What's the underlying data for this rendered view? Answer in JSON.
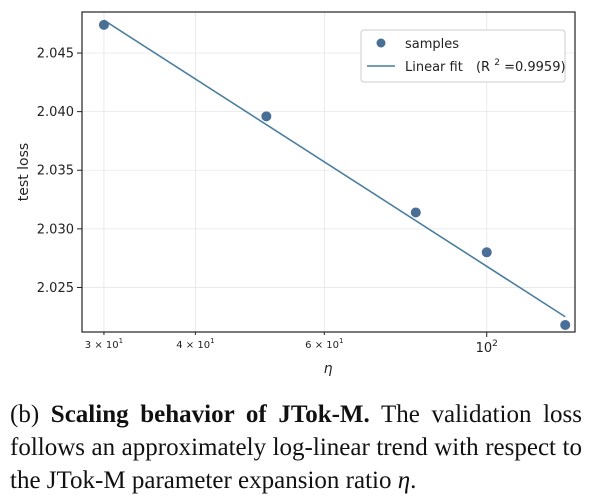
{
  "chart_data": {
    "type": "scatter",
    "xlabel": "η",
    "ylabel": "test loss",
    "xscale": "log",
    "xlim": [
      28,
      132
    ],
    "ylim": [
      2.0212,
      2.0485
    ],
    "x_ticks_minor": [
      {
        "value": 30,
        "base": "3 × 10",
        "exp": "1"
      },
      {
        "value": 40,
        "base": "4 × 10",
        "exp": "1"
      },
      {
        "value": 60,
        "base": "6 × 10",
        "exp": "1"
      }
    ],
    "x_ticks_major": [
      {
        "value": 100,
        "base": "10",
        "exp": "2"
      }
    ],
    "y_ticks": [
      {
        "value": 2.025,
        "label": "2.025"
      },
      {
        "value": 2.03,
        "label": "2.030"
      },
      {
        "value": 2.035,
        "label": "2.035"
      },
      {
        "value": 2.04,
        "label": "2.040"
      },
      {
        "value": 2.045,
        "label": "2.045"
      }
    ],
    "grid": true,
    "legend_position": "top-right",
    "series": [
      {
        "name": "samples",
        "kind": "scatter",
        "color": "#4a6f96",
        "points": [
          {
            "x": 30,
            "y": 2.0474
          },
          {
            "x": 50,
            "y": 2.0396
          },
          {
            "x": 80,
            "y": 2.0314
          },
          {
            "x": 100,
            "y": 2.028
          },
          {
            "x": 128,
            "y": 2.0218
          }
        ]
      },
      {
        "name": "Linear fit",
        "legend_suffix_prefix": "(R",
        "legend_suffix_sup": "2",
        "legend_suffix_rest": "=0.9959)",
        "kind": "line",
        "color": "#4a7ea0",
        "points": [
          {
            "x": 30,
            "y": 2.0478
          },
          {
            "x": 128,
            "y": 2.0225
          }
        ]
      }
    ]
  },
  "caption": {
    "label": "(b)",
    "bold": "Scaling behavior of JTok-M.",
    "text": "The validation loss follows an approximately log-linear trend with respect to the JTok-M parameter expansion ratio",
    "symbol": "η",
    "end": "."
  }
}
